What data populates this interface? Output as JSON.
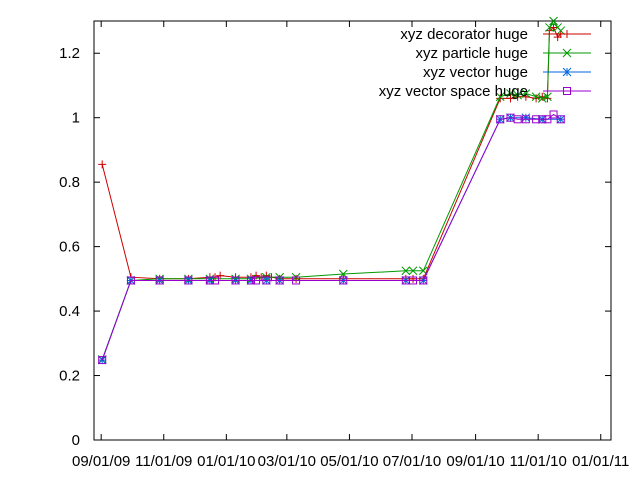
{
  "chart_data": {
    "type": "line",
    "x_axis": {
      "type": "date",
      "min": "2009-08-25",
      "max": "2011-01-11",
      "ticks": [
        {
          "value": "2009-09-01",
          "label": "09/01/09"
        },
        {
          "value": "2009-11-01",
          "label": "11/01/09"
        },
        {
          "value": "2010-01-01",
          "label": "01/01/10"
        },
        {
          "value": "2010-03-01",
          "label": "03/01/10"
        },
        {
          "value": "2010-05-01",
          "label": "05/01/10"
        },
        {
          "value": "2010-07-01",
          "label": "07/01/10"
        },
        {
          "value": "2010-09-01",
          "label": "09/01/10"
        },
        {
          "value": "2010-11-01",
          "label": "11/01/10"
        },
        {
          "value": "2011-01-01",
          "label": "01/01/11"
        }
      ]
    },
    "y_axis": {
      "min": 0,
      "max": 1.3,
      "ticks": [
        {
          "value": 0,
          "label": "0"
        },
        {
          "value": 0.2,
          "label": "0.2"
        },
        {
          "value": 0.4,
          "label": "0.4"
        },
        {
          "value": 0.6,
          "label": "0.6"
        },
        {
          "value": 0.8,
          "label": "0.8"
        },
        {
          "value": 1,
          "label": "1"
        },
        {
          "value": 1.2,
          "label": "1.2"
        }
      ]
    },
    "grid": false,
    "legend": "top-right",
    "series": [
      {
        "name": "xyz decorator huge",
        "color": "#cc0000",
        "marker": "plus",
        "points": [
          {
            "x": "2009-09-02",
            "y": 0.855
          },
          {
            "x": "2009-09-30",
            "y": 0.505
          },
          {
            "x": "2009-10-28",
            "y": 0.5
          },
          {
            "x": "2009-11-25",
            "y": 0.5
          },
          {
            "x": "2009-12-16",
            "y": 0.505
          },
          {
            "x": "2009-12-21",
            "y": 0.505
          },
          {
            "x": "2009-12-26",
            "y": 0.51
          },
          {
            "x": "2010-01-10",
            "y": 0.505
          },
          {
            "x": "2010-01-25",
            "y": 0.505
          },
          {
            "x": "2010-01-30",
            "y": 0.51
          },
          {
            "x": "2010-02-04",
            "y": 0.505
          },
          {
            "x": "2010-02-09",
            "y": 0.51
          },
          {
            "x": "2010-02-14",
            "y": 0.505
          },
          {
            "x": "2010-02-22",
            "y": 0.5
          },
          {
            "x": "2010-03-10",
            "y": 0.5
          },
          {
            "x": "2010-04-25",
            "y": 0.5
          },
          {
            "x": "2010-06-25",
            "y": 0.5
          },
          {
            "x": "2010-07-02",
            "y": 0.5
          },
          {
            "x": "2010-07-12",
            "y": 0.5
          },
          {
            "x": "2010-09-25",
            "y": 1.06
          },
          {
            "x": "2010-10-05",
            "y": 1.06
          },
          {
            "x": "2010-10-12",
            "y": 1.065
          },
          {
            "x": "2010-10-20",
            "y": 1.065
          },
          {
            "x": "2010-10-30",
            "y": 1.06
          },
          {
            "x": "2010-11-05",
            "y": 1.065
          },
          {
            "x": "2010-11-10",
            "y": 1.06
          },
          {
            "x": "2010-11-12",
            "y": 1.27
          },
          {
            "x": "2010-11-16",
            "y": 1.28
          },
          {
            "x": "2010-11-20",
            "y": 1.25
          },
          {
            "x": "2010-11-23",
            "y": 1.26
          }
        ]
      },
      {
        "name": "xyz particle huge",
        "color": "#009900",
        "marker": "cross",
        "points": [
          {
            "x": "2009-09-02",
            "y": 0.25
          },
          {
            "x": "2009-09-30",
            "y": 0.495
          },
          {
            "x": "2009-10-28",
            "y": 0.5
          },
          {
            "x": "2009-11-25",
            "y": 0.5
          },
          {
            "x": "2009-12-16",
            "y": 0.5
          },
          {
            "x": "2010-01-10",
            "y": 0.5
          },
          {
            "x": "2010-01-25",
            "y": 0.5
          },
          {
            "x": "2010-02-09",
            "y": 0.505
          },
          {
            "x": "2010-02-22",
            "y": 0.505
          },
          {
            "x": "2010-03-10",
            "y": 0.505
          },
          {
            "x": "2010-04-25",
            "y": 0.515
          },
          {
            "x": "2010-06-25",
            "y": 0.525
          },
          {
            "x": "2010-07-02",
            "y": 0.525
          },
          {
            "x": "2010-07-12",
            "y": 0.525
          },
          {
            "x": "2010-09-25",
            "y": 1.065
          },
          {
            "x": "2010-10-05",
            "y": 1.075
          },
          {
            "x": "2010-10-12",
            "y": 1.07
          },
          {
            "x": "2010-10-20",
            "y": 1.075
          },
          {
            "x": "2010-10-30",
            "y": 1.065
          },
          {
            "x": "2010-11-05",
            "y": 1.06
          },
          {
            "x": "2010-11-10",
            "y": 1.065
          },
          {
            "x": "2010-11-12",
            "y": 1.28
          },
          {
            "x": "2010-11-16",
            "y": 1.3
          },
          {
            "x": "2010-11-20",
            "y": 1.28
          },
          {
            "x": "2010-11-23",
            "y": 1.27
          }
        ]
      },
      {
        "name": "xyz vector huge",
        "color": "#0066dd",
        "marker": "star",
        "points": [
          {
            "x": "2009-09-02",
            "y": 0.248
          },
          {
            "x": "2009-09-30",
            "y": 0.495
          },
          {
            "x": "2009-10-28",
            "y": 0.495
          },
          {
            "x": "2009-11-25",
            "y": 0.495
          },
          {
            "x": "2009-12-16",
            "y": 0.495
          },
          {
            "x": "2010-01-10",
            "y": 0.495
          },
          {
            "x": "2010-01-25",
            "y": 0.495
          },
          {
            "x": "2010-02-09",
            "y": 0.495
          },
          {
            "x": "2010-02-22",
            "y": 0.495
          },
          {
            "x": "2010-04-25",
            "y": 0.495
          },
          {
            "x": "2010-06-25",
            "y": 0.495
          },
          {
            "x": "2010-07-12",
            "y": 0.495
          },
          {
            "x": "2010-09-25",
            "y": 0.995
          },
          {
            "x": "2010-10-05",
            "y": 1.0
          },
          {
            "x": "2010-10-20",
            "y": 1.0
          },
          {
            "x": "2010-11-05",
            "y": 0.995
          },
          {
            "x": "2010-11-23",
            "y": 0.995
          }
        ]
      },
      {
        "name": "xyz vector space huge",
        "color": "#9900cc",
        "marker": "square",
        "points": [
          {
            "x": "2009-09-02",
            "y": 0.248
          },
          {
            "x": "2009-09-30",
            "y": 0.495
          },
          {
            "x": "2009-10-28",
            "y": 0.495
          },
          {
            "x": "2009-11-25",
            "y": 0.495
          },
          {
            "x": "2009-12-16",
            "y": 0.495
          },
          {
            "x": "2009-12-21",
            "y": 0.495
          },
          {
            "x": "2010-01-10",
            "y": 0.495
          },
          {
            "x": "2010-01-25",
            "y": 0.495
          },
          {
            "x": "2010-01-30",
            "y": 0.495
          },
          {
            "x": "2010-02-09",
            "y": 0.495
          },
          {
            "x": "2010-02-22",
            "y": 0.495
          },
          {
            "x": "2010-03-10",
            "y": 0.495
          },
          {
            "x": "2010-04-25",
            "y": 0.495
          },
          {
            "x": "2010-06-25",
            "y": 0.495
          },
          {
            "x": "2010-07-02",
            "y": 0.495
          },
          {
            "x": "2010-07-12",
            "y": 0.495
          },
          {
            "x": "2010-09-25",
            "y": 0.995
          },
          {
            "x": "2010-10-05",
            "y": 1.0
          },
          {
            "x": "2010-10-12",
            "y": 0.995
          },
          {
            "x": "2010-10-20",
            "y": 0.995
          },
          {
            "x": "2010-10-30",
            "y": 0.995
          },
          {
            "x": "2010-11-05",
            "y": 0.995
          },
          {
            "x": "2010-11-10",
            "y": 0.995
          },
          {
            "x": "2010-11-16",
            "y": 1.01
          },
          {
            "x": "2010-11-23",
            "y": 0.995
          }
        ]
      }
    ]
  }
}
